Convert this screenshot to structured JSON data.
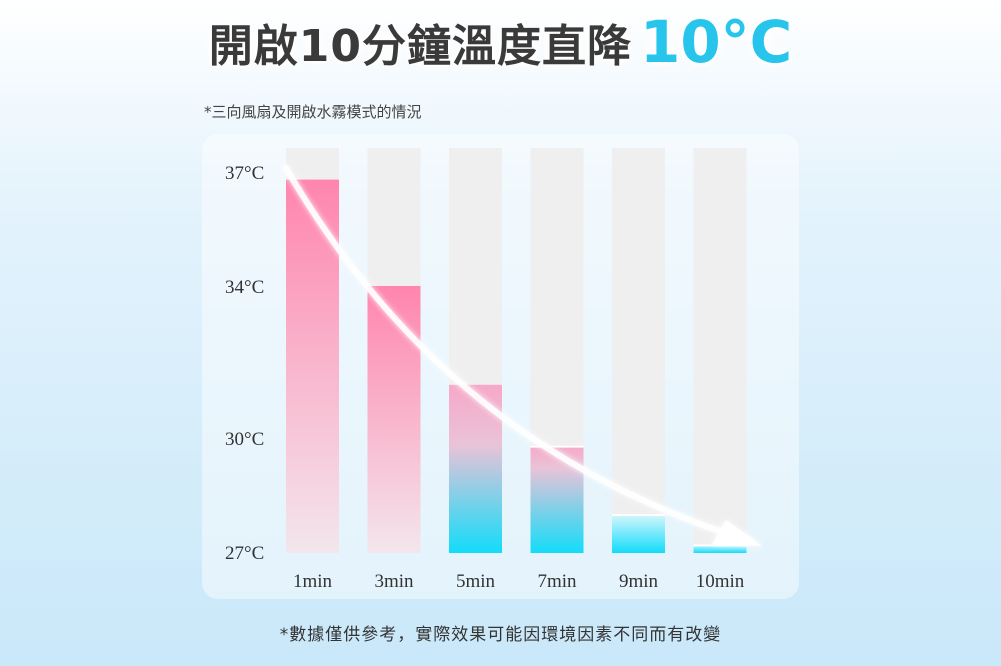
{
  "header": {
    "title": "開啟10分鐘溫度直降",
    "title_accent": "10°C",
    "subnote": "*三向風扇及開啟水霧模式的情況"
  },
  "footnote": "*數據僅供參考，實際效果可能因環境因素不同而有改變",
  "colors": {
    "pink_top": "#ff85ae",
    "pink_bottom": "#f3e6ec",
    "cyan_bottom": "#12dcf9",
    "track": "#efefef",
    "accent": "#27c5ec"
  },
  "chart_data": {
    "type": "bar",
    "title": "",
    "xlabel": "",
    "ylabel": "",
    "categories": [
      "1min",
      "3min",
      "5min",
      "7min",
      "9min",
      "10min"
    ],
    "values": [
      36.8,
      34.0,
      31.4,
      29.8,
      28.0,
      27.2
    ],
    "y_ticks": [
      {
        "value": 37,
        "label": "37°C"
      },
      {
        "value": 34,
        "label": "34°C"
      },
      {
        "value": 30,
        "label": "30°C"
      },
      {
        "value": 27,
        "label": "27°C"
      }
    ],
    "ylim": [
      26,
      37.5
    ],
    "grid": false,
    "trend_arrow": true
  }
}
